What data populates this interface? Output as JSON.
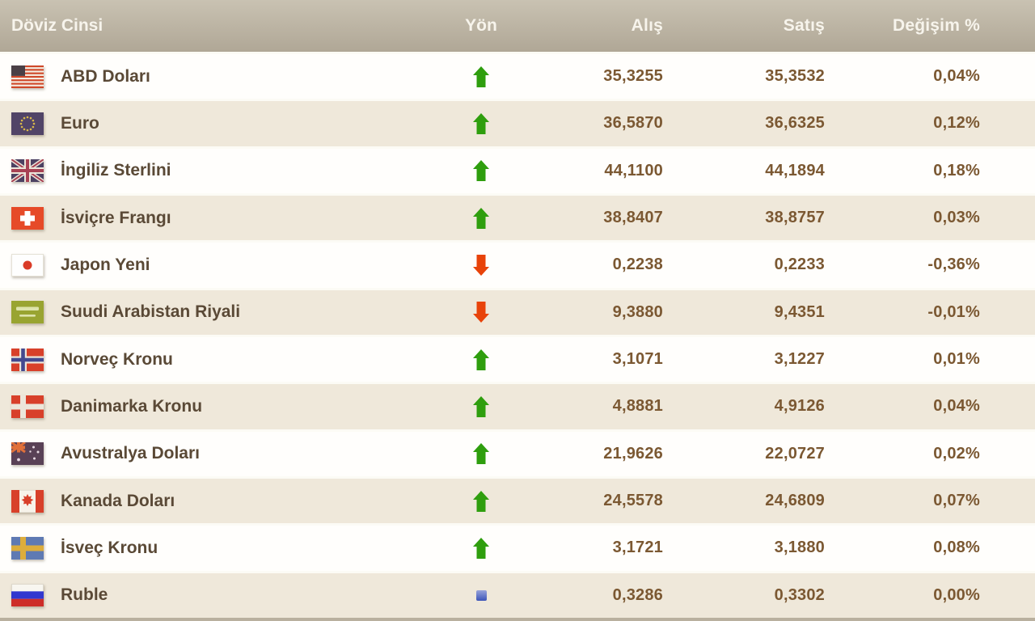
{
  "header": {
    "currency": "Döviz Cinsi",
    "direction": "Yön",
    "buy": "Alış",
    "sell": "Satış",
    "change": "Değişim %"
  },
  "rows": [
    {
      "name": "ABD Doları",
      "flag": "us",
      "direction": "up",
      "buy": "35,3255",
      "sell": "35,3532",
      "change": "0,04%"
    },
    {
      "name": "Euro",
      "flag": "eu",
      "direction": "up",
      "buy": "36,5870",
      "sell": "36,6325",
      "change": "0,12%"
    },
    {
      "name": "İngiliz Sterlini",
      "flag": "uk",
      "direction": "up",
      "buy": "44,1100",
      "sell": "44,1894",
      "change": "0,18%"
    },
    {
      "name": "İsviçre Frangı",
      "flag": "ch",
      "direction": "up",
      "buy": "38,8407",
      "sell": "38,8757",
      "change": "0,03%"
    },
    {
      "name": "Japon Yeni",
      "flag": "jp",
      "direction": "down",
      "buy": "0,2238",
      "sell": "0,2233",
      "change": "-0,36%"
    },
    {
      "name": "Suudi Arabistan Riyali",
      "flag": "sa",
      "direction": "down",
      "buy": "9,3880",
      "sell": "9,4351",
      "change": "-0,01%"
    },
    {
      "name": "Norveç Kronu",
      "flag": "no",
      "direction": "up",
      "buy": "3,1071",
      "sell": "3,1227",
      "change": "0,01%"
    },
    {
      "name": "Danimarka Kronu",
      "flag": "dk",
      "direction": "up",
      "buy": "4,8881",
      "sell": "4,9126",
      "change": "0,04%"
    },
    {
      "name": "Avustralya Doları",
      "flag": "au",
      "direction": "up",
      "buy": "21,9626",
      "sell": "22,0727",
      "change": "0,02%"
    },
    {
      "name": "Kanada Doları",
      "flag": "ca",
      "direction": "up",
      "buy": "24,5578",
      "sell": "24,6809",
      "change": "0,07%"
    },
    {
      "name": "İsveç Kronu",
      "flag": "se",
      "direction": "up",
      "buy": "3,1721",
      "sell": "3,1880",
      "change": "0,08%"
    },
    {
      "name": "Ruble",
      "flag": "ru",
      "direction": "flat",
      "buy": "0,3286",
      "sell": "0,3302",
      "change": "0,00%"
    }
  ],
  "colors": {
    "up_arrow": "#2f9e0e",
    "down_arrow": "#e8430a",
    "flat_marker": "#5570c8",
    "header_bg": "#bdb5a4",
    "alt_row_bg": "#efe8da",
    "name_text": "#5a4936",
    "number_text": "#7b5832",
    "header_text": "#f7f4ec"
  }
}
